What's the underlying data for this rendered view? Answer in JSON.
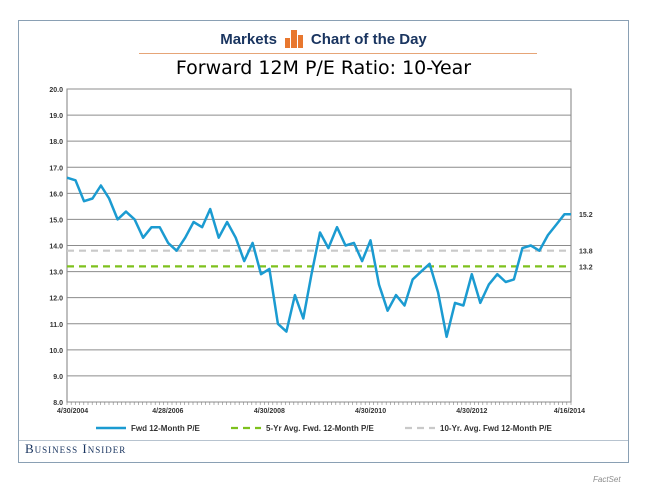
{
  "header": {
    "left_label": "Markets",
    "right_label": "Chart of the Day",
    "logo_icon": "bar-chart-logo-icon"
  },
  "brand": "Business Insider",
  "source": "FactSet",
  "colors": {
    "fwd_pe": "#1b9bd1",
    "avg5": "#7ec11d",
    "avg10": "#c9c9c9",
    "header_text": "#1a3560",
    "logo": "#e8772e"
  },
  "chart_data": {
    "type": "line",
    "title": "Forward 12M P/E Ratio: 10-Year",
    "ylim": [
      8.0,
      20.0
    ],
    "yticks": [
      "20.0",
      "19.0",
      "18.0",
      "17.0",
      "16.0",
      "15.0",
      "14.0",
      "13.0",
      "12.0",
      "11.0",
      "10.0",
      "9.0",
      "8.0"
    ],
    "xtick_labels": [
      "4/30/2004",
      "4/28/2006",
      "4/30/2008",
      "4/30/2010",
      "4/30/2012",
      "4/16/2014"
    ],
    "xlim": [
      "2004-04-30",
      "2014-04-16"
    ],
    "grid": true,
    "legend_position": "bottom",
    "series": [
      {
        "name": "Fwd 12-Month P/E",
        "style": "solid",
        "end_label": "15.2",
        "x": [
          "2004-04-30",
          "2004-06-30",
          "2004-08-31",
          "2004-10-31",
          "2004-12-31",
          "2005-02-28",
          "2005-04-30",
          "2005-06-30",
          "2005-08-31",
          "2005-10-31",
          "2005-12-31",
          "2006-02-28",
          "2006-04-30",
          "2006-06-30",
          "2006-08-31",
          "2006-10-31",
          "2006-12-31",
          "2007-02-28",
          "2007-04-30",
          "2007-06-30",
          "2007-08-31",
          "2007-10-31",
          "2007-12-31",
          "2008-02-29",
          "2008-04-30",
          "2008-06-30",
          "2008-08-31",
          "2008-10-31",
          "2008-12-31",
          "2009-02-28",
          "2009-04-30",
          "2009-06-30",
          "2009-08-31",
          "2009-10-31",
          "2009-12-31",
          "2010-02-28",
          "2010-04-30",
          "2010-06-30",
          "2010-08-31",
          "2010-10-31",
          "2010-12-31",
          "2011-02-28",
          "2011-04-30",
          "2011-06-30",
          "2011-08-31",
          "2011-10-31",
          "2011-12-31",
          "2012-02-29",
          "2012-04-30",
          "2012-06-30",
          "2012-08-31",
          "2012-10-31",
          "2012-12-31",
          "2013-02-28",
          "2013-04-30",
          "2013-06-30",
          "2013-08-31",
          "2013-10-31",
          "2013-12-31",
          "2014-02-28",
          "2014-04-16"
        ],
        "values": [
          16.6,
          16.5,
          15.7,
          15.8,
          16.3,
          15.8,
          15.0,
          15.3,
          15.0,
          14.3,
          14.7,
          14.7,
          14.1,
          13.8,
          14.3,
          14.9,
          14.7,
          15.4,
          14.3,
          14.9,
          14.3,
          13.4,
          14.1,
          12.9,
          13.1,
          11.0,
          10.7,
          12.1,
          11.2,
          12.9,
          14.5,
          13.9,
          14.7,
          14.0,
          14.1,
          13.4,
          14.2,
          12.5,
          11.5,
          12.1,
          11.7,
          12.7,
          13.0,
          13.3,
          12.2,
          10.5,
          11.8,
          11.7,
          12.9,
          11.8,
          12.5,
          12.9,
          12.6,
          12.7,
          13.9,
          14.0,
          13.8,
          14.4,
          14.8,
          15.2,
          15.2
        ]
      },
      {
        "name": "5-Yr Avg. Fwd. 12-Month P/E",
        "style": "dashed",
        "end_label": "13.2",
        "x": [
          "2004-04-30",
          "2014-04-16"
        ],
        "values": [
          13.2,
          13.2
        ]
      },
      {
        "name": "10-Yr. Avg. Fwd 12-Month P/E",
        "style": "dashed",
        "end_label": "13.8",
        "x": [
          "2004-04-30",
          "2014-04-16"
        ],
        "values": [
          13.8,
          13.8
        ]
      }
    ]
  }
}
